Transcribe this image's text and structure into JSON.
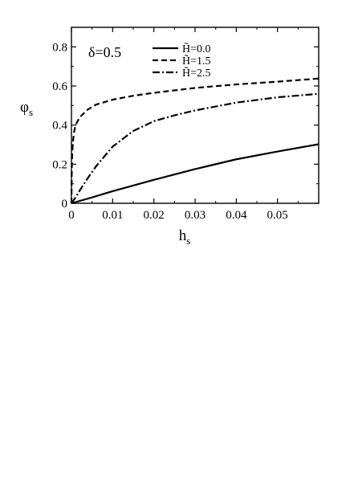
{
  "chart_data": {
    "type": "line",
    "annotation": "δ=0.5",
    "xlabel": "h",
    "xlabel_sub": "s",
    "ylabel": "φ",
    "ylabel_sub": "s",
    "xlim": [
      0,
      0.06
    ],
    "ylim": [
      0,
      0.9
    ],
    "xticks": [
      0,
      0.01,
      0.02,
      0.03,
      0.04,
      0.05
    ],
    "xtick_labels": [
      "0",
      "0.01",
      "0.02",
      "0.03",
      "0.04",
      "0.05"
    ],
    "yticks": [
      0,
      0.2,
      0.4,
      0.6,
      0.8
    ],
    "ytick_labels": [
      "0",
      "0.2",
      "0.4",
      "0.6",
      "0.8"
    ],
    "grid": false,
    "legend_position": "top-right",
    "series": [
      {
        "name": "H̃=0.0",
        "style": "solid",
        "points": [
          [
            0,
            0
          ],
          [
            0.005,
            0.03
          ],
          [
            0.01,
            0.062
          ],
          [
            0.02,
            0.12
          ],
          [
            0.03,
            0.175
          ],
          [
            0.04,
            0.225
          ],
          [
            0.05,
            0.265
          ],
          [
            0.06,
            0.302
          ]
        ]
      },
      {
        "name": "H̃=1.5",
        "style": "dashed",
        "points": [
          [
            0,
            0
          ],
          [
            0.0001,
            0.2
          ],
          [
            0.0003,
            0.3
          ],
          [
            0.0006,
            0.36
          ],
          [
            0.001,
            0.4
          ],
          [
            0.002,
            0.44
          ],
          [
            0.004,
            0.48
          ],
          [
            0.006,
            0.505
          ],
          [
            0.01,
            0.53
          ],
          [
            0.015,
            0.55
          ],
          [
            0.02,
            0.565
          ],
          [
            0.03,
            0.59
          ],
          [
            0.04,
            0.608
          ],
          [
            0.05,
            0.622
          ],
          [
            0.06,
            0.638
          ]
        ]
      },
      {
        "name": "H̃=2.5",
        "style": "dashdot",
        "points": [
          [
            0,
            0
          ],
          [
            0.001,
            0.03
          ],
          [
            0.002,
            0.065
          ],
          [
            0.004,
            0.13
          ],
          [
            0.006,
            0.19
          ],
          [
            0.008,
            0.24
          ],
          [
            0.01,
            0.29
          ],
          [
            0.015,
            0.37
          ],
          [
            0.02,
            0.42
          ],
          [
            0.025,
            0.45
          ],
          [
            0.03,
            0.475
          ],
          [
            0.04,
            0.515
          ],
          [
            0.05,
            0.542
          ],
          [
            0.06,
            0.56
          ]
        ]
      }
    ]
  }
}
